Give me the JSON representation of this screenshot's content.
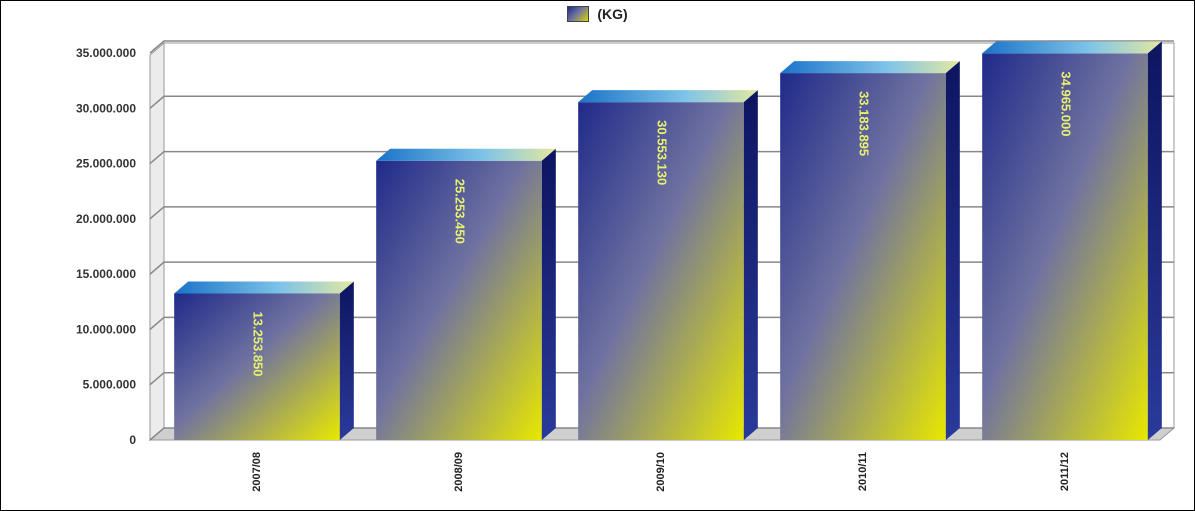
{
  "chart_data": {
    "type": "bar",
    "style": "3d",
    "legend": {
      "position": "top-center",
      "label": "(KG)"
    },
    "categories": [
      "2007/08",
      "2008/09",
      "2009/10",
      "2010/11",
      "2011/12"
    ],
    "series": [
      {
        "name": "(KG)",
        "values": [
          13253850,
          25253450,
          30553130,
          33183895,
          34965000
        ]
      }
    ],
    "data_labels": [
      "13.253.850",
      "25.253.450",
      "30.553.130",
      "33.183.895",
      "34.965.000"
    ],
    "yticks": [
      "0",
      "5.000.000",
      "10.000.000",
      "15.000.000",
      "20.000.000",
      "25.000.000",
      "30.000.000",
      "35.000.000"
    ],
    "ytick_values": [
      0,
      5000000,
      10000000,
      15000000,
      20000000,
      25000000,
      30000000,
      35000000
    ],
    "ylim": [
      0,
      35000000
    ],
    "grid": true,
    "colors": {
      "bar_top": "#1f2a8a",
      "bar_mid": "#6f72a0",
      "bar_bottom": "#e8e800",
      "label": "#e8f070",
      "grid": "#888888",
      "wall": "#ffffff",
      "floor": "#cfcfcf"
    }
  }
}
